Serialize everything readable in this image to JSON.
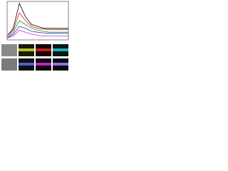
{
  "chart_data": {
    "type": "line",
    "x": [
      300,
      350,
      400,
      450,
      500,
      550,
      600,
      650,
      700,
      750,
      800
    ],
    "xlim": [
      300,
      800
    ],
    "ylim": [
      0,
      1
    ],
    "series": [
      {
        "color": "#000000",
        "values": [
          0.1,
          0.3,
          0.95,
          0.6,
          0.4,
          0.35,
          0.3,
          0.3,
          0.3,
          0.3,
          0.3
        ]
      },
      {
        "color": "#e0201c",
        "values": [
          0.1,
          0.25,
          0.7,
          0.5,
          0.35,
          0.3,
          0.28,
          0.27,
          0.27,
          0.27,
          0.27
        ]
      },
      {
        "color": "#22a02a",
        "values": [
          0.05,
          0.2,
          0.5,
          0.4,
          0.3,
          0.25,
          0.22,
          0.2,
          0.2,
          0.2,
          0.2
        ]
      },
      {
        "color": "#2040d0",
        "values": [
          0.05,
          0.15,
          0.35,
          0.3,
          0.22,
          0.2,
          0.18,
          0.17,
          0.17,
          0.17,
          0.17
        ]
      },
      {
        "color": "#d030c0",
        "values": [
          0.05,
          0.1,
          0.25,
          0.2,
          0.15,
          0.12,
          0.1,
          0.1,
          0.1,
          0.1,
          0.1
        ]
      }
    ]
  }
}
